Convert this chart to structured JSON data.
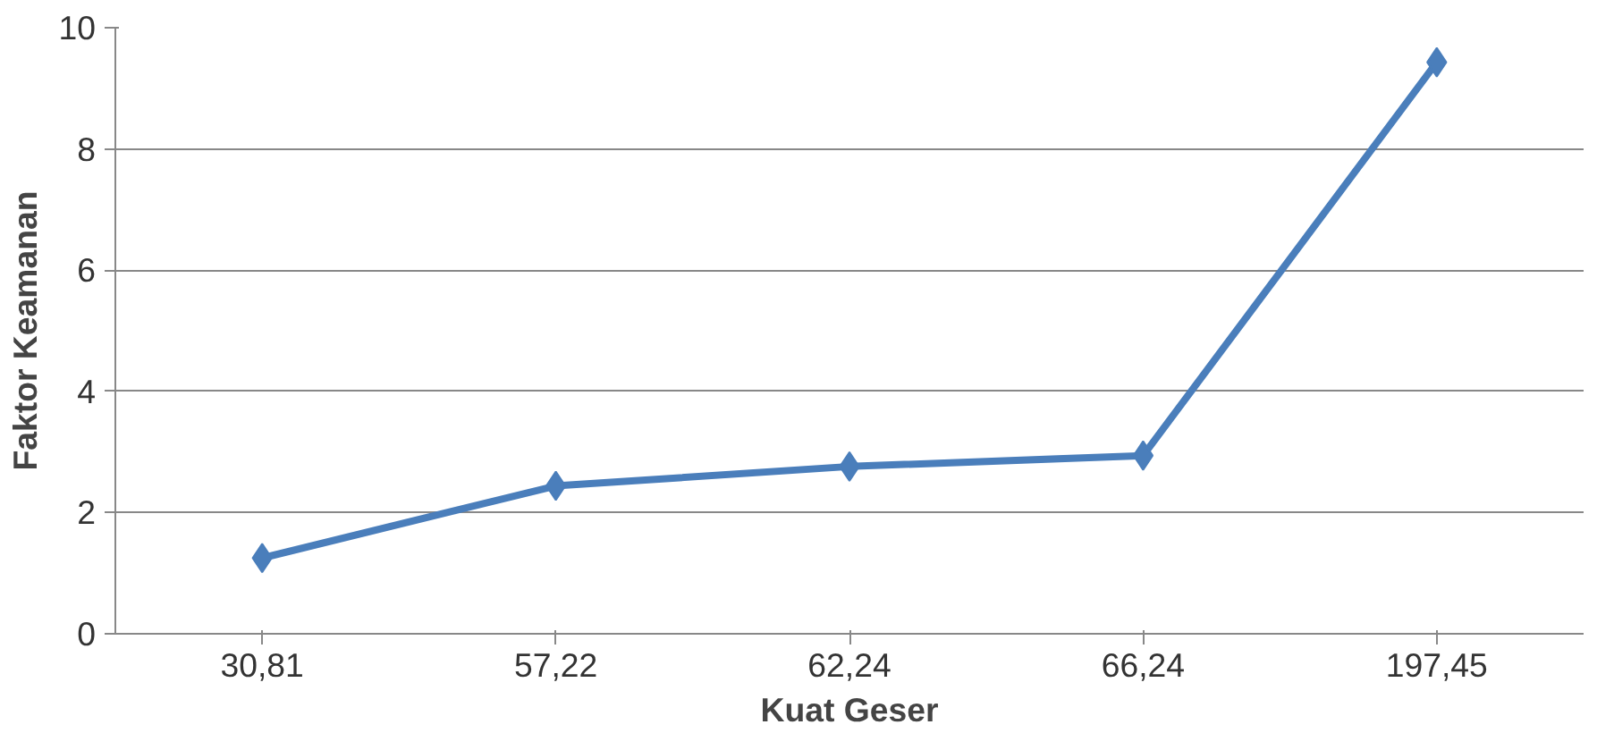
{
  "chart_data": {
    "type": "line",
    "xlabel": "Kuat Geser",
    "ylabel": "Faktor Keamanan",
    "categories": [
      "30,81",
      "57,22",
      "62,24",
      "66,24",
      "197,45"
    ],
    "series": [
      {
        "color": "#4a7ebb",
        "values": [
          1.25,
          2.44,
          2.76,
          2.94,
          9.43
        ]
      }
    ],
    "ylim": [
      0,
      10
    ],
    "yticks": [
      0,
      2,
      4,
      6,
      8,
      10
    ],
    "grid": "y",
    "marker": "diamond",
    "line_style": "solid"
  }
}
